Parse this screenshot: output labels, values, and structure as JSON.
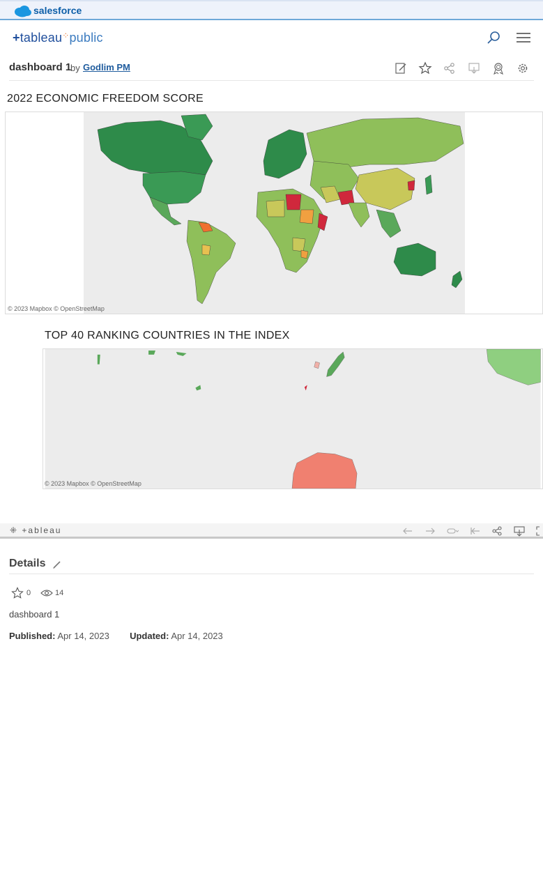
{
  "brand": {
    "name": "salesforce"
  },
  "header": {
    "logo_text": "tableau",
    "logo_suffix": "public"
  },
  "viz": {
    "name": "dashboard 1",
    "by_label": "by",
    "author": "Godlim PM"
  },
  "toolbar": {
    "icons": [
      "edit-icon",
      "star-icon",
      "share-icon",
      "download-icon",
      "badge-icon",
      "settings-icon"
    ]
  },
  "dashboard": {
    "map1_title": "2022 ECONOMIC FREEDOM SCORE",
    "map1_attribution": "© 2023 Mapbox © OpenStreetMap",
    "map2_title": "TOP 40 RANKING COUNTRIES IN THE INDEX",
    "map2_attribution": "© 2023 Mapbox © OpenStreetMap"
  },
  "tableau_footer": {
    "logo": "+ableau",
    "icons": [
      "undo-icon",
      "redo-icon",
      "revert-icon",
      "reset-icon",
      "share-icon",
      "download-icon",
      "fullscreen-icon"
    ]
  },
  "details": {
    "title": "Details",
    "favorites": "0",
    "views": "14",
    "description": "dashboard 1",
    "published_label": "Published:",
    "published_date": "Apr 14, 2023",
    "updated_label": "Updated:",
    "updated_date": "Apr 14, 2023"
  },
  "colors": {
    "accent": "#1f5c9e",
    "free": "#2e8b4a",
    "mostly_free": "#8fbf5a",
    "moderate": "#c8c85a",
    "mostly_unfree": "#f0a040",
    "repressed": "#d0283c"
  }
}
